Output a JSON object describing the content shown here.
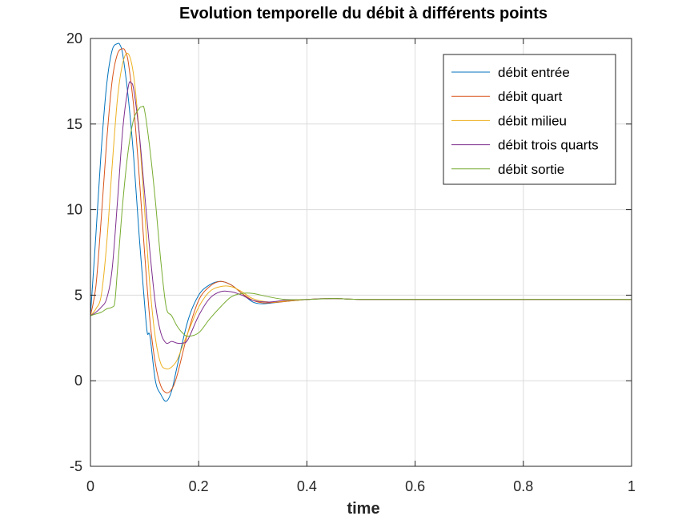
{
  "chart_data": {
    "type": "line",
    "title": "Evolution temporelle du débit à différents points",
    "xlabel": "time",
    "ylabel": "",
    "xlim": [
      0,
      1
    ],
    "ylim": [
      -5,
      20
    ],
    "xticks": [
      0,
      0.2,
      0.4,
      0.6,
      0.8,
      1
    ],
    "xtick_labels": [
      "0",
      "0.2",
      "0.4",
      "0.6",
      "0.8",
      "1"
    ],
    "yticks": [
      -5,
      0,
      5,
      10,
      15,
      20
    ],
    "ytick_labels": [
      "-5",
      "0",
      "5",
      "10",
      "15",
      "20"
    ],
    "grid": true,
    "legend_position": "top-right",
    "series": [
      {
        "name": "débit entrée",
        "color": "#0072BD",
        "x": [
          0,
          0.01,
          0.02,
          0.03,
          0.04,
          0.05,
          0.055,
          0.06,
          0.07,
          0.08,
          0.09,
          0.1,
          0.105,
          0.11,
          0.12,
          0.13,
          0.14,
          0.15,
          0.16,
          0.18,
          0.2,
          0.22,
          0.24,
          0.26,
          0.28,
          0.3,
          0.32,
          0.35,
          0.4,
          0.45,
          0.5,
          0.6,
          0.8,
          1.0
        ],
        "y": [
          3.8,
          8.5,
          13.5,
          17.3,
          19.3,
          19.7,
          19.6,
          19.0,
          16.5,
          13.0,
          8.5,
          4.5,
          2.8,
          2.6,
          0.0,
          -0.8,
          -1.2,
          -0.6,
          0.8,
          3.5,
          5.0,
          5.6,
          5.8,
          5.6,
          5.1,
          4.6,
          4.5,
          4.6,
          4.75,
          4.8,
          4.75,
          4.75,
          4.75,
          4.75
        ]
      },
      {
        "name": "débit quart",
        "color": "#D95319",
        "x": [
          0,
          0.01,
          0.02,
          0.03,
          0.04,
          0.05,
          0.06,
          0.065,
          0.07,
          0.08,
          0.09,
          0.1,
          0.11,
          0.12,
          0.13,
          0.14,
          0.15,
          0.16,
          0.18,
          0.2,
          0.22,
          0.24,
          0.26,
          0.28,
          0.3,
          0.32,
          0.35,
          0.4,
          0.45,
          0.5,
          0.6,
          0.8,
          1.0
        ],
        "y": [
          3.8,
          5.5,
          9.5,
          14.0,
          17.5,
          19.1,
          19.4,
          19.2,
          18.6,
          16.0,
          12.0,
          7.5,
          3.5,
          1.0,
          -0.3,
          -0.7,
          -0.5,
          0.3,
          2.8,
          4.7,
          5.5,
          5.8,
          5.6,
          5.1,
          4.7,
          4.55,
          4.6,
          4.75,
          4.8,
          4.75,
          4.75,
          4.75,
          4.75
        ]
      },
      {
        "name": "débit milieu",
        "color": "#EDB120",
        "x": [
          0,
          0.01,
          0.02,
          0.03,
          0.04,
          0.05,
          0.06,
          0.07,
          0.08,
          0.09,
          0.1,
          0.11,
          0.12,
          0.13,
          0.14,
          0.15,
          0.16,
          0.17,
          0.18,
          0.2,
          0.22,
          0.24,
          0.26,
          0.28,
          0.3,
          0.33,
          0.36,
          0.4,
          0.45,
          0.5,
          0.6,
          0.8,
          1.0
        ],
        "y": [
          3.8,
          4.2,
          5.0,
          8.0,
          12.5,
          16.5,
          18.6,
          19.1,
          17.8,
          14.5,
          10.0,
          5.5,
          2.5,
          1.0,
          0.7,
          0.8,
          1.2,
          2.0,
          2.8,
          4.3,
          5.2,
          5.5,
          5.5,
          5.2,
          4.8,
          4.6,
          4.65,
          4.75,
          4.8,
          4.75,
          4.75,
          4.75,
          4.75
        ]
      },
      {
        "name": "débit trois quarts",
        "color": "#7E2F8E",
        "x": [
          0,
          0.01,
          0.02,
          0.03,
          0.04,
          0.05,
          0.06,
          0.07,
          0.075,
          0.08,
          0.09,
          0.1,
          0.11,
          0.12,
          0.13,
          0.14,
          0.15,
          0.16,
          0.17,
          0.18,
          0.2,
          0.22,
          0.24,
          0.26,
          0.28,
          0.3,
          0.33,
          0.36,
          0.4,
          0.45,
          0.5,
          0.6,
          0.8,
          1.0
        ],
        "y": [
          3.8,
          4.0,
          4.3,
          4.8,
          6.5,
          10.5,
          14.8,
          17.2,
          17.4,
          17.0,
          14.5,
          11.0,
          7.5,
          4.5,
          2.8,
          2.2,
          2.3,
          2.2,
          2.2,
          2.4,
          3.8,
          4.8,
          5.2,
          5.2,
          5.0,
          4.7,
          4.6,
          4.7,
          4.75,
          4.8,
          4.75,
          4.75,
          4.75,
          4.75
        ]
      },
      {
        "name": "débit sortie",
        "color": "#77AC30",
        "x": [
          0,
          0.01,
          0.02,
          0.03,
          0.04,
          0.045,
          0.05,
          0.06,
          0.07,
          0.08,
          0.09,
          0.095,
          0.1,
          0.11,
          0.12,
          0.13,
          0.14,
          0.15,
          0.16,
          0.17,
          0.18,
          0.2,
          0.22,
          0.24,
          0.26,
          0.28,
          0.3,
          0.33,
          0.36,
          0.4,
          0.45,
          0.5,
          0.6,
          0.8,
          1.0
        ],
        "y": [
          3.8,
          3.9,
          4.0,
          4.2,
          4.3,
          4.6,
          6.5,
          10.5,
          13.5,
          15.3,
          15.9,
          16.0,
          15.8,
          13.5,
          10.5,
          7.0,
          4.3,
          3.8,
          3.2,
          2.8,
          2.6,
          2.8,
          3.6,
          4.3,
          4.9,
          5.1,
          5.1,
          4.9,
          4.75,
          4.75,
          4.8,
          4.75,
          4.75,
          4.75,
          4.75
        ]
      }
    ]
  }
}
